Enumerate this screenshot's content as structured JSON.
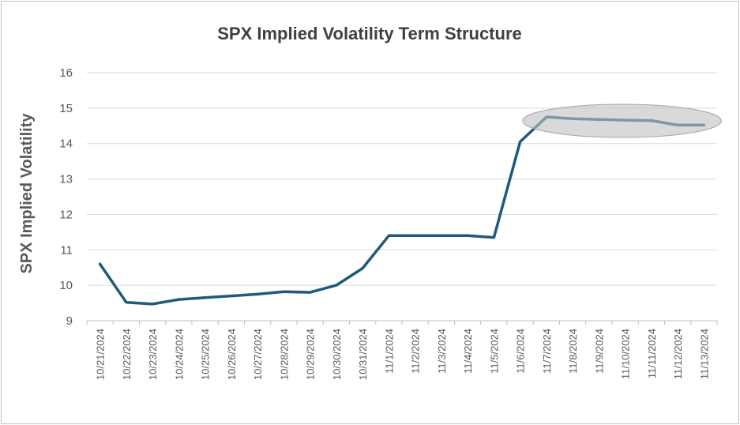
{
  "chart_data": {
    "type": "line",
    "title": "SPX Implied Volatility Term Structure",
    "xlabel": "",
    "ylabel": "SPX Implied Volatility",
    "ylim": [
      9,
      16
    ],
    "yticks": [
      9,
      10,
      11,
      12,
      13,
      14,
      15,
      16
    ],
    "grid": true,
    "legend": "none",
    "categories": [
      "10/21/2024",
      "10/22/2024",
      "10/23/2024",
      "10/24/2024",
      "10/25/2024",
      "10/26/2024",
      "10/27/2024",
      "10/28/2024",
      "10/29/2024",
      "10/30/2024",
      "10/31/2024",
      "11/1/2024",
      "11/2/2024",
      "11/3/2024",
      "11/4/2024",
      "11/5/2024",
      "11/6/2024",
      "11/7/2024",
      "11/8/2024",
      "11/9/2024",
      "11/10/2024",
      "11/11/2024",
      "11/12/2024",
      "11/13/2024"
    ],
    "series": [
      {
        "values": [
          10.6,
          9.52,
          9.47,
          9.6,
          9.65,
          9.7,
          9.75,
          9.82,
          9.8,
          10.0,
          10.48,
          11.4,
          11.4,
          11.4,
          11.4,
          11.35,
          14.05,
          14.75,
          14.7,
          14.68,
          14.66,
          14.65,
          14.52,
          14.52
        ],
        "color": "#1f5a7a"
      }
    ],
    "annotations": [
      {
        "type": "ellipse-highlight",
        "from_category": "11/7/2024",
        "to_category": "11/13/2024",
        "color": "#bfbfbf"
      }
    ]
  }
}
